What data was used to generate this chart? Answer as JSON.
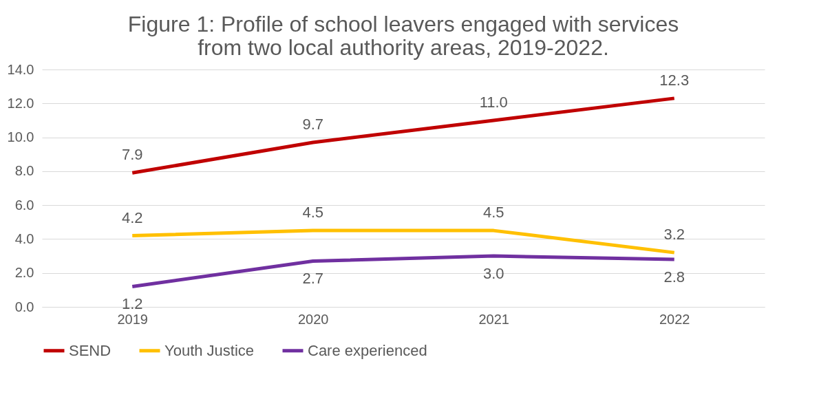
{
  "chart_data": {
    "type": "line",
    "title": "Figure 1: Profile of school leavers engaged with services from two local authority areas, 2019-2022.",
    "categories": [
      "2019",
      "2020",
      "2021",
      "2022"
    ],
    "series": [
      {
        "name": "SEND",
        "color": "#c00000",
        "values": [
          7.9,
          9.7,
          11.0,
          12.3
        ],
        "value_labels": [
          "7.9",
          "9.7",
          "11.0",
          "12.3"
        ]
      },
      {
        "name": "Youth Justice",
        "color": "#ffc000",
        "values": [
          4.2,
          4.5,
          4.5,
          3.2
        ],
        "value_labels": [
          "4.2",
          "4.5",
          "4.5",
          "3.2"
        ]
      },
      {
        "name": "Care experienced",
        "color": "#7030a0",
        "values": [
          1.2,
          2.7,
          3.0,
          2.8
        ],
        "value_labels": [
          "1.2",
          "2.7",
          "3.0",
          "2.8"
        ]
      }
    ],
    "ylim": [
      0,
      14
    ],
    "yticks": [
      {
        "value": 0,
        "label": "0.0"
      },
      {
        "value": 2,
        "label": "2.0"
      },
      {
        "value": 4,
        "label": "4.0"
      },
      {
        "value": 6,
        "label": "6.0"
      },
      {
        "value": 8,
        "label": "8.0"
      },
      {
        "value": 10,
        "label": "10.0"
      },
      {
        "value": 12,
        "label": "12.0"
      },
      {
        "value": 14,
        "label": "14.0"
      }
    ],
    "grid": "y",
    "legend": "bottom",
    "marker": "none",
    "line_style": "solid"
  }
}
